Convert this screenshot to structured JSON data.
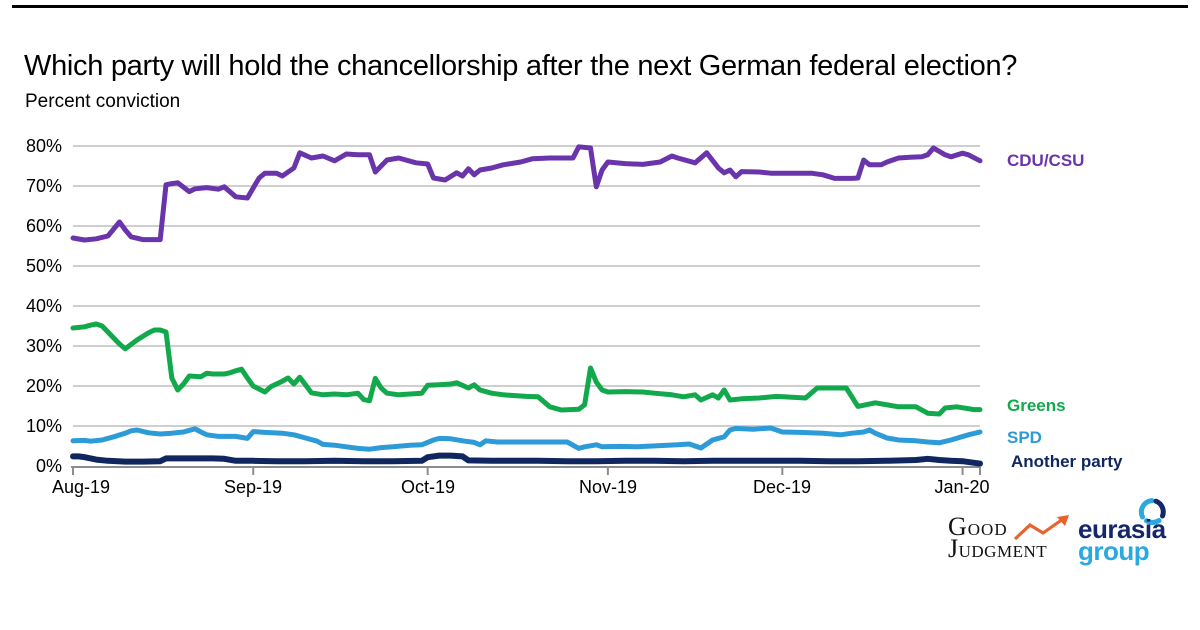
{
  "page": {
    "title": "Which party will hold the chancellorship after the next German federal election?",
    "subtitle": "Percent conviction"
  },
  "branding": {
    "good_judgment_line1": "Good",
    "good_judgment_line2": "Judgment",
    "eurasia_line1": "eurasia",
    "eurasia_line2": "group",
    "arrow_color": "#E8622D"
  },
  "chart_data": {
    "type": "line",
    "title": "Which party will hold the chancellorship after the next German federal election?",
    "subtitle": "Percent conviction",
    "grid": true,
    "legend_position": "right-of-lines",
    "x_axis": {
      "tick_labels": [
        "Aug-19",
        "Sep-19",
        "Oct-19",
        "Nov-19",
        "Dec-19",
        "Jan-20"
      ],
      "tick_days": [
        0,
        31,
        61,
        92,
        122,
        153
      ],
      "domain_days": [
        0,
        156
      ],
      "unit": "date"
    },
    "y_axis": {
      "tick_labels": [
        "0%",
        "10%",
        "20%",
        "30%",
        "40%",
        "50%",
        "60%",
        "70%",
        "80%"
      ],
      "min": 0,
      "max": 80,
      "unit": "percent"
    },
    "colors": {
      "gridline": "#c8c8c8",
      "axis": "#8c8c8c",
      "text": "#000000"
    },
    "series": [
      {
        "name": "CDU/CSU",
        "color": "#6A35AB",
        "width": 5,
        "points": [
          [
            0,
            57
          ],
          [
            2,
            56.5
          ],
          [
            4,
            56.8
          ],
          [
            6,
            57.5
          ],
          [
            8,
            61
          ],
          [
            9,
            59
          ],
          [
            10,
            57.3
          ],
          [
            12,
            56.6
          ],
          [
            15,
            56.6
          ],
          [
            16,
            70.3
          ],
          [
            17,
            70.6
          ],
          [
            18,
            70.8
          ],
          [
            20,
            68.6
          ],
          [
            21,
            69.3
          ],
          [
            23,
            69.6
          ],
          [
            25,
            69.2
          ],
          [
            26,
            69.8
          ],
          [
            28,
            67.3
          ],
          [
            30,
            67
          ],
          [
            31,
            69.5
          ],
          [
            32,
            72
          ],
          [
            33,
            73.2
          ],
          [
            35,
            73.2
          ],
          [
            36,
            72.5
          ],
          [
            38,
            74.5
          ],
          [
            39,
            78.3
          ],
          [
            41,
            77
          ],
          [
            43,
            77.5
          ],
          [
            45,
            76.3
          ],
          [
            47,
            78
          ],
          [
            49,
            77.8
          ],
          [
            51,
            77.8
          ],
          [
            52,
            73.5
          ],
          [
            54,
            76.5
          ],
          [
            56,
            77
          ],
          [
            59,
            75.8
          ],
          [
            61,
            75.5
          ],
          [
            62,
            72
          ],
          [
            64,
            71.5
          ],
          [
            66,
            73.3
          ],
          [
            67,
            72.5
          ],
          [
            68,
            74.3
          ],
          [
            69,
            72.8
          ],
          [
            70,
            74
          ],
          [
            72,
            74.5
          ],
          [
            74,
            75.3
          ],
          [
            77,
            76
          ],
          [
            79,
            76.8
          ],
          [
            82,
            77
          ],
          [
            86,
            77
          ],
          [
            87,
            79.8
          ],
          [
            89,
            79.5
          ],
          [
            90,
            69.8
          ],
          [
            91,
            74
          ],
          [
            92,
            76
          ],
          [
            95,
            75.6
          ],
          [
            98,
            75.4
          ],
          [
            101,
            76
          ],
          [
            103,
            77.5
          ],
          [
            104,
            77
          ],
          [
            107,
            75.8
          ],
          [
            109,
            78.3
          ],
          [
            111,
            74.5
          ],
          [
            112,
            73.3
          ],
          [
            113,
            74
          ],
          [
            114,
            72.3
          ],
          [
            115,
            73.6
          ],
          [
            118,
            73.5
          ],
          [
            120,
            73.2
          ],
          [
            124,
            73.2
          ],
          [
            127,
            73.2
          ],
          [
            129,
            72.8
          ],
          [
            131,
            71.9
          ],
          [
            134,
            71.9
          ],
          [
            135,
            72
          ],
          [
            136,
            76.5
          ],
          [
            137,
            75.3
          ],
          [
            139,
            75.3
          ],
          [
            140,
            76
          ],
          [
            142,
            77
          ],
          [
            144,
            77.2
          ],
          [
            146,
            77.3
          ],
          [
            147,
            77.8
          ],
          [
            148,
            79.5
          ],
          [
            150,
            77.8
          ],
          [
            151,
            77.3
          ],
          [
            153,
            78.2
          ],
          [
            154,
            77.8
          ],
          [
            156,
            76.3
          ]
        ]
      },
      {
        "name": "Greens",
        "color": "#12A94D",
        "width": 5,
        "points": [
          [
            0,
            34.5
          ],
          [
            2,
            34.8
          ],
          [
            3,
            35.2
          ],
          [
            4,
            35.5
          ],
          [
            5,
            35
          ],
          [
            6,
            33.5
          ],
          [
            8,
            30.5
          ],
          [
            9,
            29.3
          ],
          [
            11,
            31.5
          ],
          [
            13,
            33.3
          ],
          [
            14,
            34
          ],
          [
            15,
            34
          ],
          [
            16,
            33.5
          ],
          [
            17,
            22
          ],
          [
            18,
            19
          ],
          [
            19,
            20.5
          ],
          [
            20,
            22.5
          ],
          [
            22,
            22.3
          ],
          [
            23,
            23.2
          ],
          [
            24,
            23
          ],
          [
            26,
            23
          ],
          [
            27,
            23.3
          ],
          [
            28,
            23.8
          ],
          [
            29,
            24.2
          ],
          [
            30,
            22
          ],
          [
            31,
            20
          ],
          [
            33,
            18.5
          ],
          [
            34,
            19.8
          ],
          [
            36,
            21.2
          ],
          [
            37,
            22
          ],
          [
            38,
            20.5
          ],
          [
            39,
            22.2
          ],
          [
            41,
            18.3
          ],
          [
            43,
            17.8
          ],
          [
            45,
            18
          ],
          [
            47,
            17.8
          ],
          [
            49,
            18.2
          ],
          [
            50,
            16.6
          ],
          [
            51,
            16.3
          ],
          [
            52,
            21.9
          ],
          [
            53,
            19.5
          ],
          [
            54,
            18.2
          ],
          [
            56,
            17.8
          ],
          [
            58,
            18
          ],
          [
            60,
            18.2
          ],
          [
            61,
            20.2
          ],
          [
            63,
            20.3
          ],
          [
            65,
            20.5
          ],
          [
            66,
            20.8
          ],
          [
            68,
            19.5
          ],
          [
            69,
            20.3
          ],
          [
            70,
            19
          ],
          [
            72,
            18.2
          ],
          [
            74,
            17.8
          ],
          [
            76,
            17.6
          ],
          [
            78,
            17.4
          ],
          [
            80,
            17.3
          ],
          [
            82,
            14.8
          ],
          [
            84,
            14
          ],
          [
            87,
            14.2
          ],
          [
            88,
            15.3
          ],
          [
            89,
            24.5
          ],
          [
            90,
            21
          ],
          [
            91,
            19
          ],
          [
            92,
            18.5
          ],
          [
            95,
            18.6
          ],
          [
            98,
            18.5
          ],
          [
            100,
            18.2
          ],
          [
            103,
            17.8
          ],
          [
            105,
            17.3
          ],
          [
            107,
            17.8
          ],
          [
            108,
            16.5
          ],
          [
            110,
            17.8
          ],
          [
            111,
            17
          ],
          [
            112,
            19
          ],
          [
            113,
            16.5
          ],
          [
            115,
            16.8
          ],
          [
            118,
            17
          ],
          [
            121,
            17.4
          ],
          [
            126,
            17
          ],
          [
            128,
            19.5
          ],
          [
            133,
            19.5
          ],
          [
            135,
            14.9
          ],
          [
            138,
            15.8
          ],
          [
            142,
            14.8
          ],
          [
            145,
            14.8
          ],
          [
            147,
            13.2
          ],
          [
            149,
            13
          ],
          [
            150,
            14.5
          ],
          [
            152,
            14.8
          ],
          [
            155,
            14.1
          ],
          [
            156,
            14.1
          ]
        ]
      },
      {
        "name": "SPD",
        "color": "#2D9BD8",
        "width": 5,
        "points": [
          [
            0,
            6.3
          ],
          [
            2,
            6.4
          ],
          [
            3,
            6.2
          ],
          [
            5,
            6.5
          ],
          [
            7,
            7.3
          ],
          [
            9,
            8.2
          ],
          [
            10,
            8.8
          ],
          [
            11,
            9
          ],
          [
            13,
            8.3
          ],
          [
            15,
            8
          ],
          [
            17,
            8.2
          ],
          [
            19,
            8.5
          ],
          [
            21,
            9.3
          ],
          [
            22,
            8.5
          ],
          [
            23,
            7.8
          ],
          [
            25,
            7.4
          ],
          [
            28,
            7.4
          ],
          [
            30,
            6.9
          ],
          [
            31,
            8.6
          ],
          [
            33,
            8.4
          ],
          [
            36,
            8.2
          ],
          [
            38,
            7.8
          ],
          [
            40,
            7
          ],
          [
            42,
            6.2
          ],
          [
            43,
            5.4
          ],
          [
            45,
            5.2
          ],
          [
            47,
            4.8
          ],
          [
            49,
            4.4
          ],
          [
            51,
            4.2
          ],
          [
            53,
            4.6
          ],
          [
            55,
            4.8
          ],
          [
            58,
            5.2
          ],
          [
            60,
            5.3
          ],
          [
            62,
            6.5
          ],
          [
            63,
            6.9
          ],
          [
            65,
            6.8
          ],
          [
            67,
            6.3
          ],
          [
            69,
            5.9
          ],
          [
            70,
            5.3
          ],
          [
            71,
            6.3
          ],
          [
            73,
            6
          ],
          [
            77,
            6
          ],
          [
            81,
            6
          ],
          [
            85,
            6
          ],
          [
            87,
            4.4
          ],
          [
            88,
            4.8
          ],
          [
            90,
            5.3
          ],
          [
            91,
            4.8
          ],
          [
            94,
            4.9
          ],
          [
            97,
            4.8
          ],
          [
            101,
            5.1
          ],
          [
            104,
            5.3
          ],
          [
            106,
            5.5
          ],
          [
            108,
            4.5
          ],
          [
            110,
            6.5
          ],
          [
            112,
            7.3
          ],
          [
            113,
            9
          ],
          [
            114,
            9.4
          ],
          [
            117,
            9.2
          ],
          [
            120,
            9.5
          ],
          [
            122,
            8.5
          ],
          [
            125,
            8.4
          ],
          [
            129,
            8.2
          ],
          [
            132,
            7.8
          ],
          [
            134,
            8.2
          ],
          [
            136,
            8.5
          ],
          [
            137,
            9
          ],
          [
            138,
            8.2
          ],
          [
            140,
            7
          ],
          [
            142,
            6.5
          ],
          [
            145,
            6.3
          ],
          [
            147,
            6
          ],
          [
            149,
            5.8
          ],
          [
            151,
            6.5
          ],
          [
            154,
            7.8
          ],
          [
            156,
            8.5
          ]
        ]
      },
      {
        "name": "Another party",
        "color": "#10265E",
        "width": 6,
        "points": [
          [
            0,
            2.4
          ],
          [
            1,
            2.4
          ],
          [
            2,
            2.2
          ],
          [
            4,
            1.6
          ],
          [
            6,
            1.3
          ],
          [
            9,
            1.1
          ],
          [
            12,
            1.1
          ],
          [
            15,
            1.2
          ],
          [
            16,
            1.9
          ],
          [
            20,
            1.9
          ],
          [
            24,
            1.9
          ],
          [
            26,
            1.8
          ],
          [
            28,
            1.3
          ],
          [
            31,
            1.3
          ],
          [
            35,
            1.2
          ],
          [
            40,
            1.2
          ],
          [
            45,
            1.3
          ],
          [
            50,
            1.2
          ],
          [
            55,
            1.2
          ],
          [
            60,
            1.3
          ],
          [
            61,
            2.2
          ],
          [
            63,
            2.6
          ],
          [
            65,
            2.6
          ],
          [
            67,
            2.4
          ],
          [
            68,
            1.4
          ],
          [
            72,
            1.3
          ],
          [
            76,
            1.3
          ],
          [
            80,
            1.3
          ],
          [
            85,
            1.2
          ],
          [
            90,
            1.2
          ],
          [
            95,
            1.3
          ],
          [
            100,
            1.3
          ],
          [
            105,
            1.2
          ],
          [
            110,
            1.3
          ],
          [
            115,
            1.3
          ],
          [
            120,
            1.3
          ],
          [
            125,
            1.3
          ],
          [
            130,
            1.2
          ],
          [
            135,
            1.2
          ],
          [
            140,
            1.3
          ],
          [
            145,
            1.5
          ],
          [
            147,
            1.8
          ],
          [
            149,
            1.5
          ],
          [
            151,
            1.3
          ],
          [
            153,
            1.2
          ],
          [
            155,
            0.8
          ],
          [
            156,
            0.6
          ]
        ]
      }
    ]
  }
}
